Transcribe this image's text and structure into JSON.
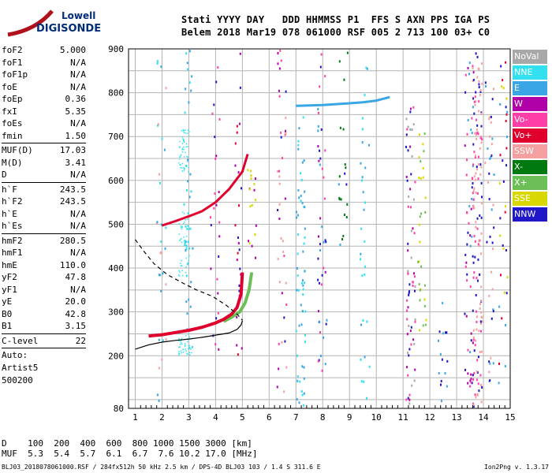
{
  "logo": {
    "line1": "Lowell",
    "line2": "DIGISONDE"
  },
  "header": {
    "line1": "Stati YYYY DAY   DDD HHMMSS P1  FFS S AXN PPS IGA PS",
    "line2": "Belem 2018 Mar19 078 061000 RSF 005 2 713 100 03+ C0"
  },
  "params": {
    "group1": [
      {
        "label": "foF2",
        "value": "5.000"
      },
      {
        "label": "foF1",
        "value": "N/A"
      },
      {
        "label": "foF1p",
        "value": "N/A"
      },
      {
        "label": "foE",
        "value": "N/A"
      },
      {
        "label": "foEp",
        "value": "0.36"
      },
      {
        "label": "fxI",
        "value": "5.35"
      },
      {
        "label": "foEs",
        "value": "N/A"
      },
      {
        "label": "fmin",
        "value": "1.50"
      }
    ],
    "group2": [
      {
        "label": "MUF(D)",
        "value": "17.03"
      },
      {
        "label": "M(D)",
        "value": "3.41"
      },
      {
        "label": "D",
        "value": "N/A"
      }
    ],
    "group3": [
      {
        "label": "h`F",
        "value": "243.5"
      },
      {
        "label": "h`F2",
        "value": "243.5"
      },
      {
        "label": "h`E",
        "value": "N/A"
      },
      {
        "label": "h`Es",
        "value": "N/A"
      }
    ],
    "group4": [
      {
        "label": "hmF2",
        "value": "280.5"
      },
      {
        "label": "hmF1",
        "value": "N/A"
      },
      {
        "label": "hmE",
        "value": "110.0"
      },
      {
        "label": "yF2",
        "value": "47.8"
      },
      {
        "label": "yF1",
        "value": "N/A"
      },
      {
        "label": "yE",
        "value": "20.0"
      },
      {
        "label": "B0",
        "value": "42.8"
      },
      {
        "label": "B1",
        "value": "3.15"
      }
    ],
    "group5": [
      {
        "label": "C-level",
        "value": "22"
      }
    ],
    "auto": [
      "Auto:",
      "Artist5",
      "500200"
    ]
  },
  "legend": [
    {
      "label": "NoVal",
      "color": "#a8a8a8"
    },
    {
      "label": "NNE",
      "color": "#33e0f0"
    },
    {
      "label": "E",
      "color": "#3aa6e6"
    },
    {
      "label": "W",
      "color": "#b000a8"
    },
    {
      "label": "Vo-",
      "color": "#ff3fa8"
    },
    {
      "label": "Vo+",
      "color": "#e0002e"
    },
    {
      "label": "SSW",
      "color": "#f5a0a0"
    },
    {
      "label": "X-",
      "color": "#007a10"
    },
    {
      "label": "X+",
      "color": "#6cbf56"
    },
    {
      "label": "SSE",
      "color": "#d8d800"
    },
    {
      "label": "NNW",
      "color": "#2018c8"
    }
  ],
  "chart_data": {
    "type": "scatter",
    "x_ticks": [
      "1",
      "2",
      "3",
      "4",
      "5",
      "6",
      "7",
      "8",
      "9",
      "10",
      "11",
      "12",
      "13",
      "14",
      "15"
    ],
    "y_ticks": [
      "80",
      "200",
      "300",
      "400",
      "500",
      "600",
      "700",
      "800",
      "900"
    ],
    "x_unit": "MHz",
    "y_unit": "km",
    "grid": true,
    "trace_F2_ordinary": {
      "color": "#e0002e",
      "x": [
        1.5,
        2.0,
        2.5,
        3.0,
        3.5,
        4.0,
        4.3,
        4.6,
        4.8,
        4.95,
        5.0
      ],
      "y": [
        245,
        248,
        253,
        258,
        265,
        275,
        283,
        295,
        310,
        340,
        390
      ]
    },
    "trace_F2_extraordinary": {
      "color": "#6cbf56",
      "x": [
        4.3,
        4.6,
        4.9,
        5.1,
        5.25,
        5.35
      ],
      "y": [
        278,
        288,
        300,
        320,
        350,
        390
      ]
    },
    "trace_second_hop": {
      "color": "#e0002e",
      "x": [
        2.0,
        2.5,
        3.0,
        3.5,
        4.0,
        4.5,
        5.0,
        5.2
      ],
      "y": [
        497,
        507,
        518,
        530,
        550,
        580,
        620,
        660
      ]
    },
    "trace_interference_780": {
      "color": "#3aa6e6",
      "x": [
        7.0,
        7.5,
        8.0,
        8.5,
        9.0,
        9.5,
        10.0,
        10.5
      ],
      "y": [
        770,
        771,
        772,
        774,
        776,
        778,
        782,
        790
      ]
    },
    "profile_solid": {
      "color": "#000000",
      "x": [
        1.0,
        1.5,
        2.0,
        2.5,
        3.0,
        3.5,
        4.0,
        4.5,
        4.8,
        4.95,
        5.0
      ],
      "y": [
        215,
        225,
        231,
        235,
        238,
        242,
        247,
        252,
        260,
        270,
        280
      ]
    },
    "profile_dashed": {
      "color": "#000000",
      "x": [
        1.0,
        1.3,
        1.7,
        2.2,
        2.8,
        3.3,
        3.9,
        4.4,
        4.8,
        5.0
      ],
      "y": [
        465,
        440,
        410,
        385,
        365,
        350,
        335,
        315,
        295,
        281
      ]
    }
  },
  "bottom": {
    "d_row": "D    100  200  400  600  800 1000 1500 3000 [km]",
    "muf_row": "MUF  5.3  5.4  5.7  6.1  6.7  7.6 10.2 17.0 [MHz]"
  },
  "footer": {
    "left": "BLJ03_2018078061000.RSF / 284fx512h 50 kHz 2.5 km / DPS-4D BLJ03 103 / 1.4 S 311.6 E",
    "right": "Ion2Png v. 1.3.17"
  }
}
